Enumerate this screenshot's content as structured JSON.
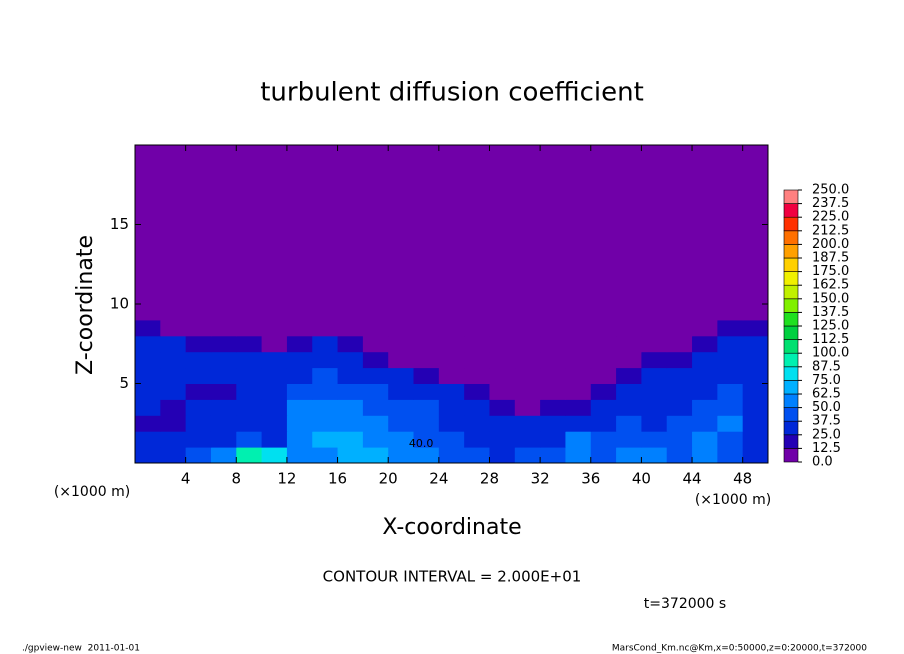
{
  "chart_data": {
    "type": "heatmap",
    "title": "turbulent diffusion coefficient",
    "xlabel": "X-coordinate",
    "ylabel": "Z-coordinate",
    "x_unit_labels": [
      "(×1000 m)",
      "(×1000 m)"
    ],
    "xlim": [
      0,
      50
    ],
    "ylim": [
      0,
      20
    ],
    "xticks": [
      4,
      8,
      12,
      16,
      20,
      24,
      28,
      32,
      36,
      40,
      44,
      48
    ],
    "yticks": [
      5,
      10,
      15
    ],
    "x_edges": [
      0,
      2,
      4,
      6,
      8,
      10,
      12,
      14,
      16,
      18,
      20,
      22,
      24,
      26,
      28,
      30,
      32,
      34,
      36,
      38,
      40,
      42,
      44,
      46,
      48,
      50
    ],
    "z_edges": [
      0,
      1,
      2,
      3,
      4,
      5,
      6,
      7,
      8,
      9,
      20
    ],
    "values": [
      [
        30,
        35,
        45,
        60,
        95,
        80,
        55,
        60,
        65,
        70,
        55,
        50,
        45,
        40,
        35,
        45,
        40,
        55,
        45,
        60,
        50,
        45,
        55,
        40,
        35
      ],
      [
        25,
        25,
        30,
        35,
        40,
        35,
        60,
        65,
        70,
        60,
        50,
        45,
        40,
        35,
        30,
        30,
        35,
        50,
        45,
        45,
        40,
        40,
        50,
        45,
        30
      ],
      [
        22,
        22,
        25,
        25,
        25,
        30,
        55,
        60,
        60,
        50,
        45,
        40,
        35,
        30,
        25,
        25,
        30,
        35,
        35,
        40,
        35,
        40,
        45,
        50,
        30
      ],
      [
        25,
        22,
        25,
        25,
        25,
        30,
        50,
        55,
        50,
        45,
        40,
        40,
        30,
        25,
        20,
        10,
        15,
        20,
        25,
        35,
        30,
        35,
        40,
        45,
        30
      ],
      [
        28,
        25,
        22,
        22,
        25,
        30,
        45,
        45,
        45,
        40,
        35,
        30,
        25,
        15,
        8,
        6,
        8,
        10,
        15,
        25,
        30,
        30,
        35,
        40,
        30
      ],
      [
        30,
        28,
        25,
        25,
        28,
        30,
        35,
        40,
        35,
        30,
        25,
        20,
        10,
        6,
        5,
        5,
        5,
        6,
        10,
        20,
        25,
        25,
        30,
        35,
        30
      ],
      [
        30,
        30,
        28,
        28,
        25,
        25,
        30,
        30,
        25,
        20,
        10,
        6,
        5,
        5,
        5,
        5,
        5,
        5,
        6,
        10,
        15,
        20,
        25,
        30,
        28
      ],
      [
        25,
        25,
        22,
        20,
        15,
        10,
        20,
        25,
        15,
        8,
        6,
        5,
        5,
        5,
        5,
        5,
        5,
        5,
        5,
        5,
        6,
        8,
        15,
        25,
        25
      ],
      [
        15,
        10,
        8,
        6,
        5,
        5,
        6,
        8,
        5,
        5,
        5,
        5,
        5,
        5,
        5,
        5,
        5,
        5,
        5,
        5,
        5,
        5,
        6,
        15,
        20
      ],
      [
        5,
        5,
        5,
        5,
        5,
        5,
        5,
        5,
        5,
        5,
        5,
        5,
        5,
        5,
        5,
        5,
        5,
        5,
        5,
        5,
        5,
        5,
        5,
        5,
        5
      ]
    ],
    "colorbar": {
      "levels": [
        {
          "value": 0,
          "label": "0.0"
        },
        {
          "value": 12.5,
          "label": "12.5"
        },
        {
          "value": 25,
          "label": "25.0"
        },
        {
          "value": 37.5,
          "label": "37.5"
        },
        {
          "value": 50,
          "label": "50.0"
        },
        {
          "value": 62.5,
          "label": "62.5"
        },
        {
          "value": 75,
          "label": "75.0"
        },
        {
          "value": 87.5,
          "label": "87.5"
        },
        {
          "value": 100,
          "label": "100.0"
        },
        {
          "value": 112.5,
          "label": "112.5"
        },
        {
          "value": 125,
          "label": "125.0"
        },
        {
          "value": 137.5,
          "label": "137.5"
        },
        {
          "value": 150,
          "label": "150.0"
        },
        {
          "value": 162.5,
          "label": "162.5"
        },
        {
          "value": 175,
          "label": "175.0"
        },
        {
          "value": 187.5,
          "label": "187.5"
        },
        {
          "value": 200,
          "label": "200.0"
        },
        {
          "value": 212.5,
          "label": "212.5"
        },
        {
          "value": 225,
          "label": "225.0"
        },
        {
          "value": 237.5,
          "label": "237.5"
        },
        {
          "value": 250,
          "label": "250.0"
        }
      ],
      "colors": [
        "#7000a8",
        "#2400b4",
        "#0028d8",
        "#0050f0",
        "#0080ff",
        "#00b0ff",
        "#00e0f0",
        "#00f0b0",
        "#00e070",
        "#00d040",
        "#20e020",
        "#80f000",
        "#c0f000",
        "#f0f000",
        "#ffd000",
        "#ffa000",
        "#ff7000",
        "#ff3000",
        "#f00040",
        "#ff8080"
      ]
    },
    "contour_label": "40.0",
    "annotations": [
      "CONTOUR INTERVAL = 2.000E+01",
      "t=372000 s"
    ]
  },
  "footer": {
    "left": "./gpview-new  2011-01-01",
    "right": "MarsCond_Km.nc@Km,x=0:50000,z=0:20000,t=372000"
  }
}
